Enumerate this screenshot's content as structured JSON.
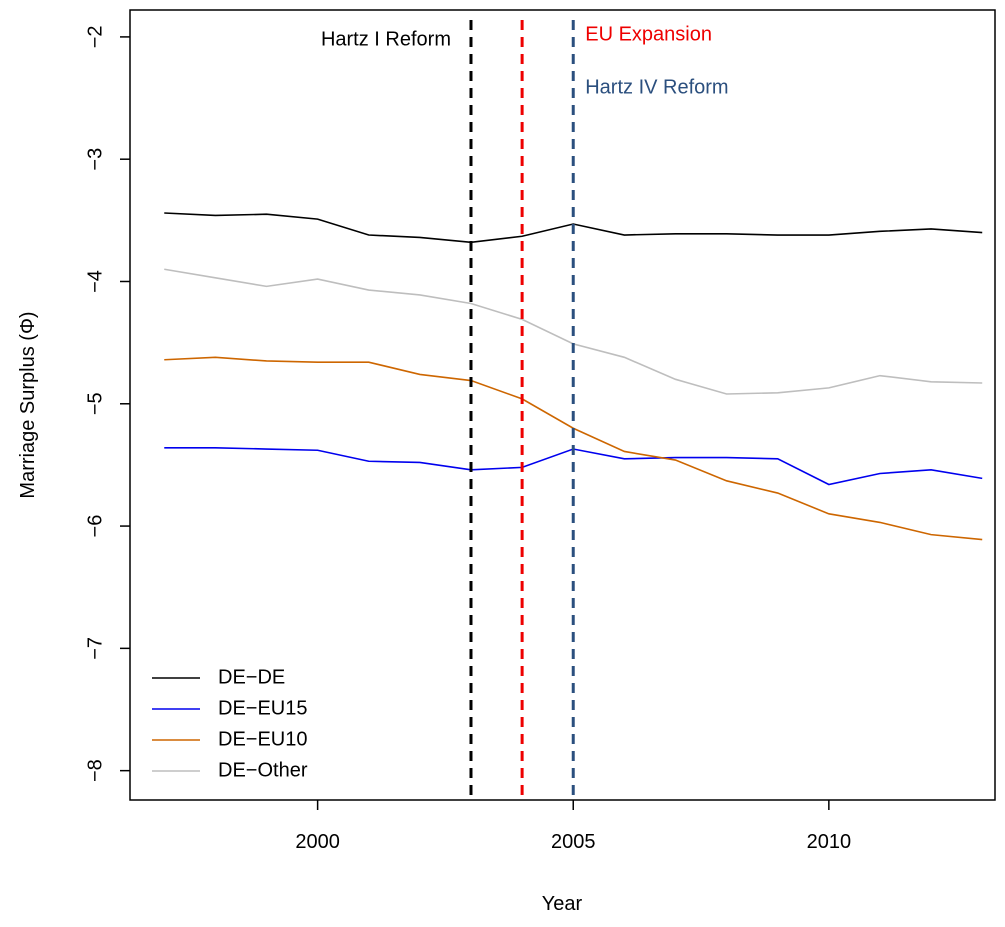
{
  "chart_data": {
    "type": "line",
    "xlabel": "Year",
    "ylabel": "Marriage Surplus (Φ)",
    "x": [
      1997,
      1998,
      1999,
      2000,
      2001,
      2002,
      2003,
      2004,
      2005,
      2006,
      2007,
      2008,
      2009,
      2010,
      2011,
      2012,
      2013
    ],
    "series": [
      {
        "name": "DE−DE",
        "color": "#000000",
        "values": [
          -3.44,
          -3.46,
          -3.45,
          -3.49,
          -3.62,
          -3.64,
          -3.68,
          -3.63,
          -3.53,
          -3.62,
          -3.61,
          -3.61,
          -3.62,
          -3.62,
          -3.59,
          -3.57,
          -3.6
        ]
      },
      {
        "name": "DE−EU15",
        "color": "#0000ee",
        "values": [
          -5.36,
          -5.36,
          -5.37,
          -5.38,
          -5.47,
          -5.48,
          -5.54,
          -5.52,
          -5.37,
          -5.45,
          -5.44,
          -5.44,
          -5.45,
          -5.66,
          -5.57,
          -5.54,
          -5.61
        ]
      },
      {
        "name": "DE−EU10",
        "color": "#cd6600",
        "values": [
          -4.64,
          -4.62,
          -4.65,
          -4.66,
          -4.66,
          -4.76,
          -4.81,
          -4.96,
          -5.2,
          -5.39,
          -5.46,
          -5.63,
          -5.73,
          -5.9,
          -5.97,
          -6.07,
          -6.11
        ]
      },
      {
        "name": "DE−Other",
        "color": "#bebebe",
        "values": [
          -3.9,
          -3.97,
          -4.04,
          -3.98,
          -4.07,
          -4.11,
          -4.18,
          -4.31,
          -4.51,
          -4.62,
          -4.8,
          -4.92,
          -4.91,
          -4.87,
          -4.77,
          -4.82,
          -4.83
        ]
      }
    ],
    "vlines": [
      {
        "x": 2003,
        "color": "#000000",
        "label": "Hartz I Reform"
      },
      {
        "x": 2004,
        "color": "#ee0000",
        "label": "EU Expansion"
      },
      {
        "x": 2005,
        "color": "#2b4f7e",
        "label": "Hartz IV Reform"
      }
    ],
    "xlim": [
      1996.33,
      2013.25
    ],
    "xticks": [
      2000,
      2005,
      2010
    ],
    "ylim": [
      -8.24,
      -1.78
    ],
    "yticks": [
      {
        "value": -2,
        "label": "−2"
      },
      {
        "value": -3,
        "label": "−3"
      },
      {
        "value": -4,
        "label": "−4"
      },
      {
        "value": -5,
        "label": "−5"
      },
      {
        "value": -6,
        "label": "−6"
      },
      {
        "value": -7,
        "label": "−7"
      },
      {
        "value": -8,
        "label": "−8"
      }
    ],
    "legend": "bottomleft"
  }
}
